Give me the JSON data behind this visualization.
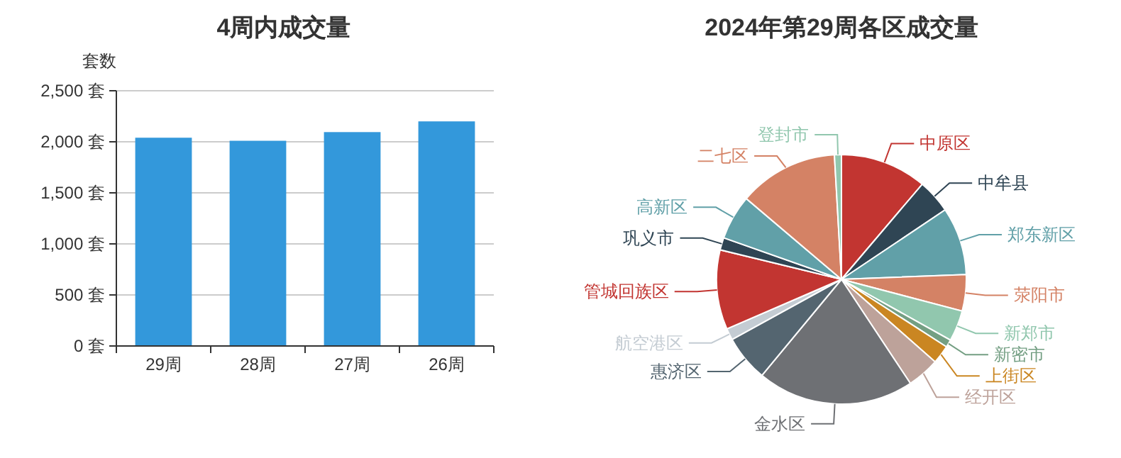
{
  "chart_data": [
    {
      "type": "bar",
      "title": "4周内成交量",
      "ylabel": "套数",
      "categories": [
        "29周",
        "28周",
        "27周",
        "26周"
      ],
      "values": [
        2040,
        2010,
        2095,
        2200
      ],
      "color": "#3398db",
      "ylim": [
        0,
        2500
      ],
      "yticks": [
        {
          "value": 0,
          "label": "0 套"
        },
        {
          "value": 500,
          "label": "500 套"
        },
        {
          "value": 1000,
          "label": "1,000 套"
        },
        {
          "value": 1500,
          "label": "1,500 套"
        },
        {
          "value": 2000,
          "label": "2,000 套"
        },
        {
          "value": 2500,
          "label": "2,500 套"
        }
      ],
      "grid": "y"
    },
    {
      "type": "pie",
      "title": "2024年第29周各区成交量",
      "categories": [
        "中原区",
        "中牟县",
        "郑东新区",
        "荥阳市",
        "新郑市",
        "新密市",
        "上街区",
        "经开区",
        "金水区",
        "惠济区",
        "航空港区",
        "管城回族区",
        "巩义市",
        "高新区",
        "二七区",
        "登封市"
      ],
      "values": [
        11.2,
        4.4,
        8.8,
        4.7,
        4.0,
        1.0,
        2.4,
        4.2,
        20.3,
        6.0,
        1.5,
        10.3,
        1.6,
        5.8,
        12.9,
        0.9
      ],
      "colors": [
        "#c23531",
        "#2f4554",
        "#61a0a8",
        "#d48265",
        "#91c7ae",
        "#749f83",
        "#ca8622",
        "#bda29a",
        "#6e7074",
        "#546570",
        "#c4ccd3",
        "#c23531",
        "#2f4554",
        "#61a0a8",
        "#d48265",
        "#91c7ae"
      ]
    }
  ]
}
